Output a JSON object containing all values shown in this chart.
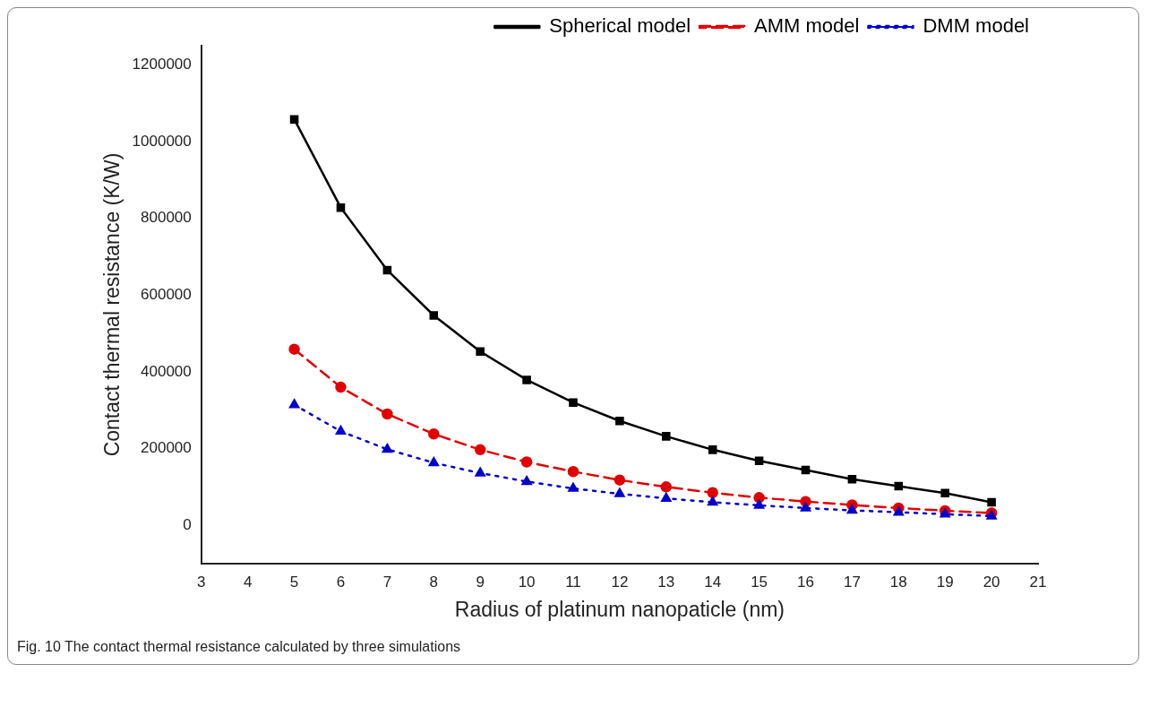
{
  "chart_data": {
    "type": "line",
    "xlabel": "Radius of platinum nanopaticle (nm)",
    "ylabel": "Contact thermal resistance (K/W)",
    "x": [
      5,
      6,
      7,
      8,
      9,
      10,
      11,
      12,
      13,
      14,
      15,
      16,
      17,
      18,
      19,
      20
    ],
    "series": [
      {
        "name": "Spherical model",
        "color": "#000000",
        "marker": "square",
        "line_style": "solid",
        "values": [
          1058000,
          828000,
          665000,
          547000,
          453000,
          379000,
          320000,
          272000,
          232000,
          197000,
          168000,
          144000,
          120000,
          102000,
          84000,
          60000
        ]
      },
      {
        "name": "AMM model",
        "color": "#e00000",
        "marker": "circle",
        "line_style": "dashed",
        "values": [
          459000,
          360000,
          290000,
          238000,
          197000,
          165000,
          140000,
          118000,
          100000,
          85000,
          72000,
          62000,
          53000,
          45000,
          38000,
          32000
        ]
      },
      {
        "name": "DMM model",
        "color": "#0000cc",
        "marker": "triangle",
        "line_style": "dotted",
        "values": [
          314000,
          245000,
          198000,
          163000,
          136000,
          114000,
          96000,
          82000,
          70000,
          60000,
          52000,
          45000,
          39000,
          34000,
          29000,
          24000
        ]
      }
    ],
    "xlim": [
      3,
      21
    ],
    "xticks": [
      3,
      4,
      5,
      6,
      7,
      8,
      9,
      10,
      11,
      12,
      13,
      14,
      15,
      16,
      17,
      18,
      19,
      20,
      21
    ],
    "ylim": [
      -100000,
      1250000
    ],
    "yticks": [
      0,
      200000,
      400000,
      600000,
      800000,
      1000000,
      1200000
    ],
    "grid": false,
    "legend": "top right",
    "annotations": [
      "Fig. 10 The contact thermal resistance calculated by three simulations"
    ]
  }
}
